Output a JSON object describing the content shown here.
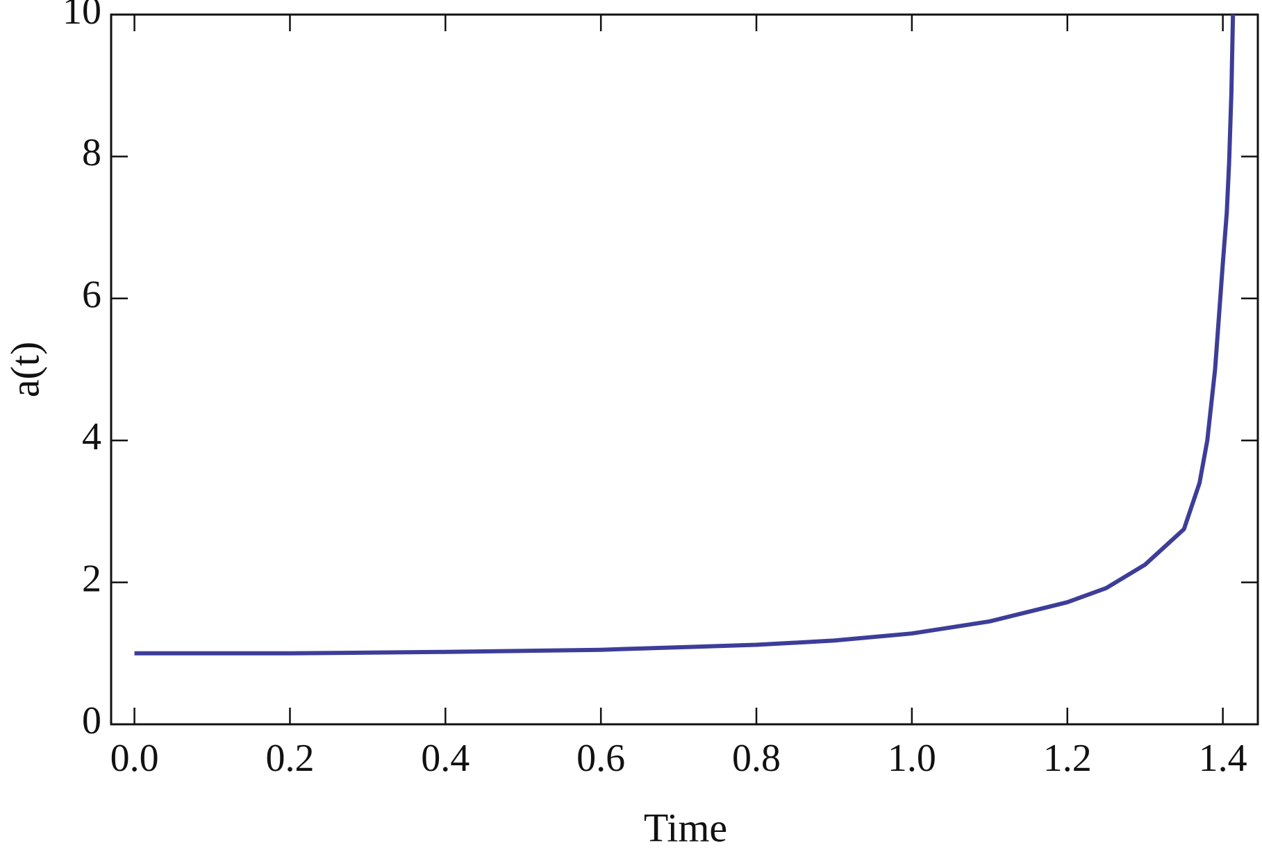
{
  "chart_data": {
    "type": "line",
    "xlabel": "Time",
    "ylabel": "a(t)",
    "x": [
      0,
      0.2,
      0.4,
      0.6,
      0.8,
      0.9,
      1.0,
      1.1,
      1.2,
      1.25,
      1.3,
      1.33,
      1.35,
      1.37,
      1.38,
      1.39,
      1.4,
      1.405,
      1.408,
      1.411,
      1.413
    ],
    "series": [
      {
        "color": "#3d3d99",
        "values": [
          1.0,
          1.0,
          1.02,
          1.05,
          1.12,
          1.18,
          1.28,
          1.45,
          1.72,
          1.92,
          2.25,
          2.55,
          2.75,
          3.4,
          4.0,
          5.0,
          6.5,
          7.2,
          7.9,
          8.9,
          10
        ]
      }
    ],
    "xlim": [
      -0.03,
      1.445
    ],
    "ylim": [
      0,
      10
    ],
    "xticks": [
      {
        "value": 0,
        "label": "0.0"
      },
      0.2,
      0.4,
      0.6,
      0.8,
      {
        "value": 1,
        "label": "1.0"
      },
      1.2,
      1.4
    ],
    "yticks": [
      0,
      2,
      4,
      6,
      8,
      10
    ]
  }
}
